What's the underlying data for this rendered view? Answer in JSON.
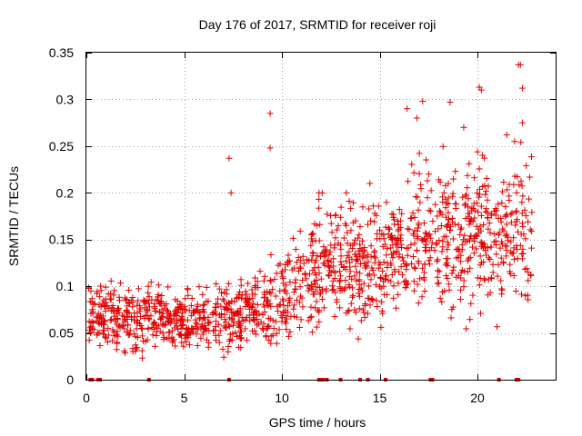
{
  "chart_data": {
    "type": "scatter",
    "title": "Day 176 of 2017, SRMTID for receiver roji",
    "xlabel": "GPS time / hours",
    "ylabel": "SRMTID / TECUs",
    "xlim": [
      0,
      24
    ],
    "ylim": [
      0,
      0.35
    ],
    "xticks": [
      "0",
      "5",
      "10",
      "15",
      "20"
    ],
    "xtick_values": [
      0,
      5,
      10,
      15,
      20
    ],
    "yticks": [
      "0",
      "0.05",
      "0.1",
      "0.15",
      "0.2",
      "0.25",
      "0.3",
      "0.35"
    ],
    "ytick_values": [
      0,
      0.05,
      0.1,
      0.15,
      0.2,
      0.25,
      0.3,
      0.35
    ],
    "grid": true,
    "marker": "plus",
    "color": "#e00000",
    "profile": [
      [
        0.0,
        0.075
      ],
      [
        1.0,
        0.07
      ],
      [
        2.0,
        0.065
      ],
      [
        3.0,
        0.068
      ],
      [
        4.0,
        0.065
      ],
      [
        5.0,
        0.062
      ],
      [
        6.0,
        0.065
      ],
      [
        7.0,
        0.07
      ],
      [
        8.0,
        0.068
      ],
      [
        9.0,
        0.075
      ],
      [
        10.0,
        0.085
      ],
      [
        11.0,
        0.1
      ],
      [
        12.0,
        0.12
      ],
      [
        13.0,
        0.13
      ],
      [
        14.0,
        0.115
      ],
      [
        15.0,
        0.12
      ],
      [
        16.0,
        0.135
      ],
      [
        17.0,
        0.15
      ],
      [
        18.0,
        0.155
      ],
      [
        19.0,
        0.16
      ],
      [
        20.0,
        0.155
      ],
      [
        21.0,
        0.15
      ],
      [
        22.0,
        0.16
      ],
      [
        22.8,
        0.15
      ]
    ],
    "highlights": [
      {
        "x": 9.4,
        "y": 0.285
      },
      {
        "x": 9.4,
        "y": 0.248
      },
      {
        "x": 7.3,
        "y": 0.237
      },
      {
        "x": 7.4,
        "y": 0.2
      },
      {
        "x": 22.1,
        "y": 0.337
      },
      {
        "x": 22.2,
        "y": 0.337
      },
      {
        "x": 20.1,
        "y": 0.313
      },
      {
        "x": 20.2,
        "y": 0.31
      },
      {
        "x": 17.2,
        "y": 0.298
      },
      {
        "x": 18.6,
        "y": 0.297
      },
      {
        "x": 22.3,
        "y": 0.312
      },
      {
        "x": 16.4,
        "y": 0.29
      },
      {
        "x": 16.9,
        "y": 0.28
      },
      {
        "x": 19.3,
        "y": 0.27
      },
      {
        "x": 22.3,
        "y": 0.275
      },
      {
        "x": 11.9,
        "y": 0.2
      },
      {
        "x": 13.3,
        "y": 0.2
      },
      {
        "x": 14.5,
        "y": 0.21
      },
      {
        "x": 21.5,
        "y": 0.262
      },
      {
        "x": 21.9,
        "y": 0.255
      }
    ],
    "bottom_markers_x": [
      0.2,
      0.3,
      0.6,
      0.7,
      3.2,
      7.3,
      11.9,
      12.0,
      12.1,
      12.3,
      13.0,
      14.0,
      14.4,
      15.3,
      17.6,
      17.7,
      21.1,
      22.0,
      22.1
    ]
  }
}
